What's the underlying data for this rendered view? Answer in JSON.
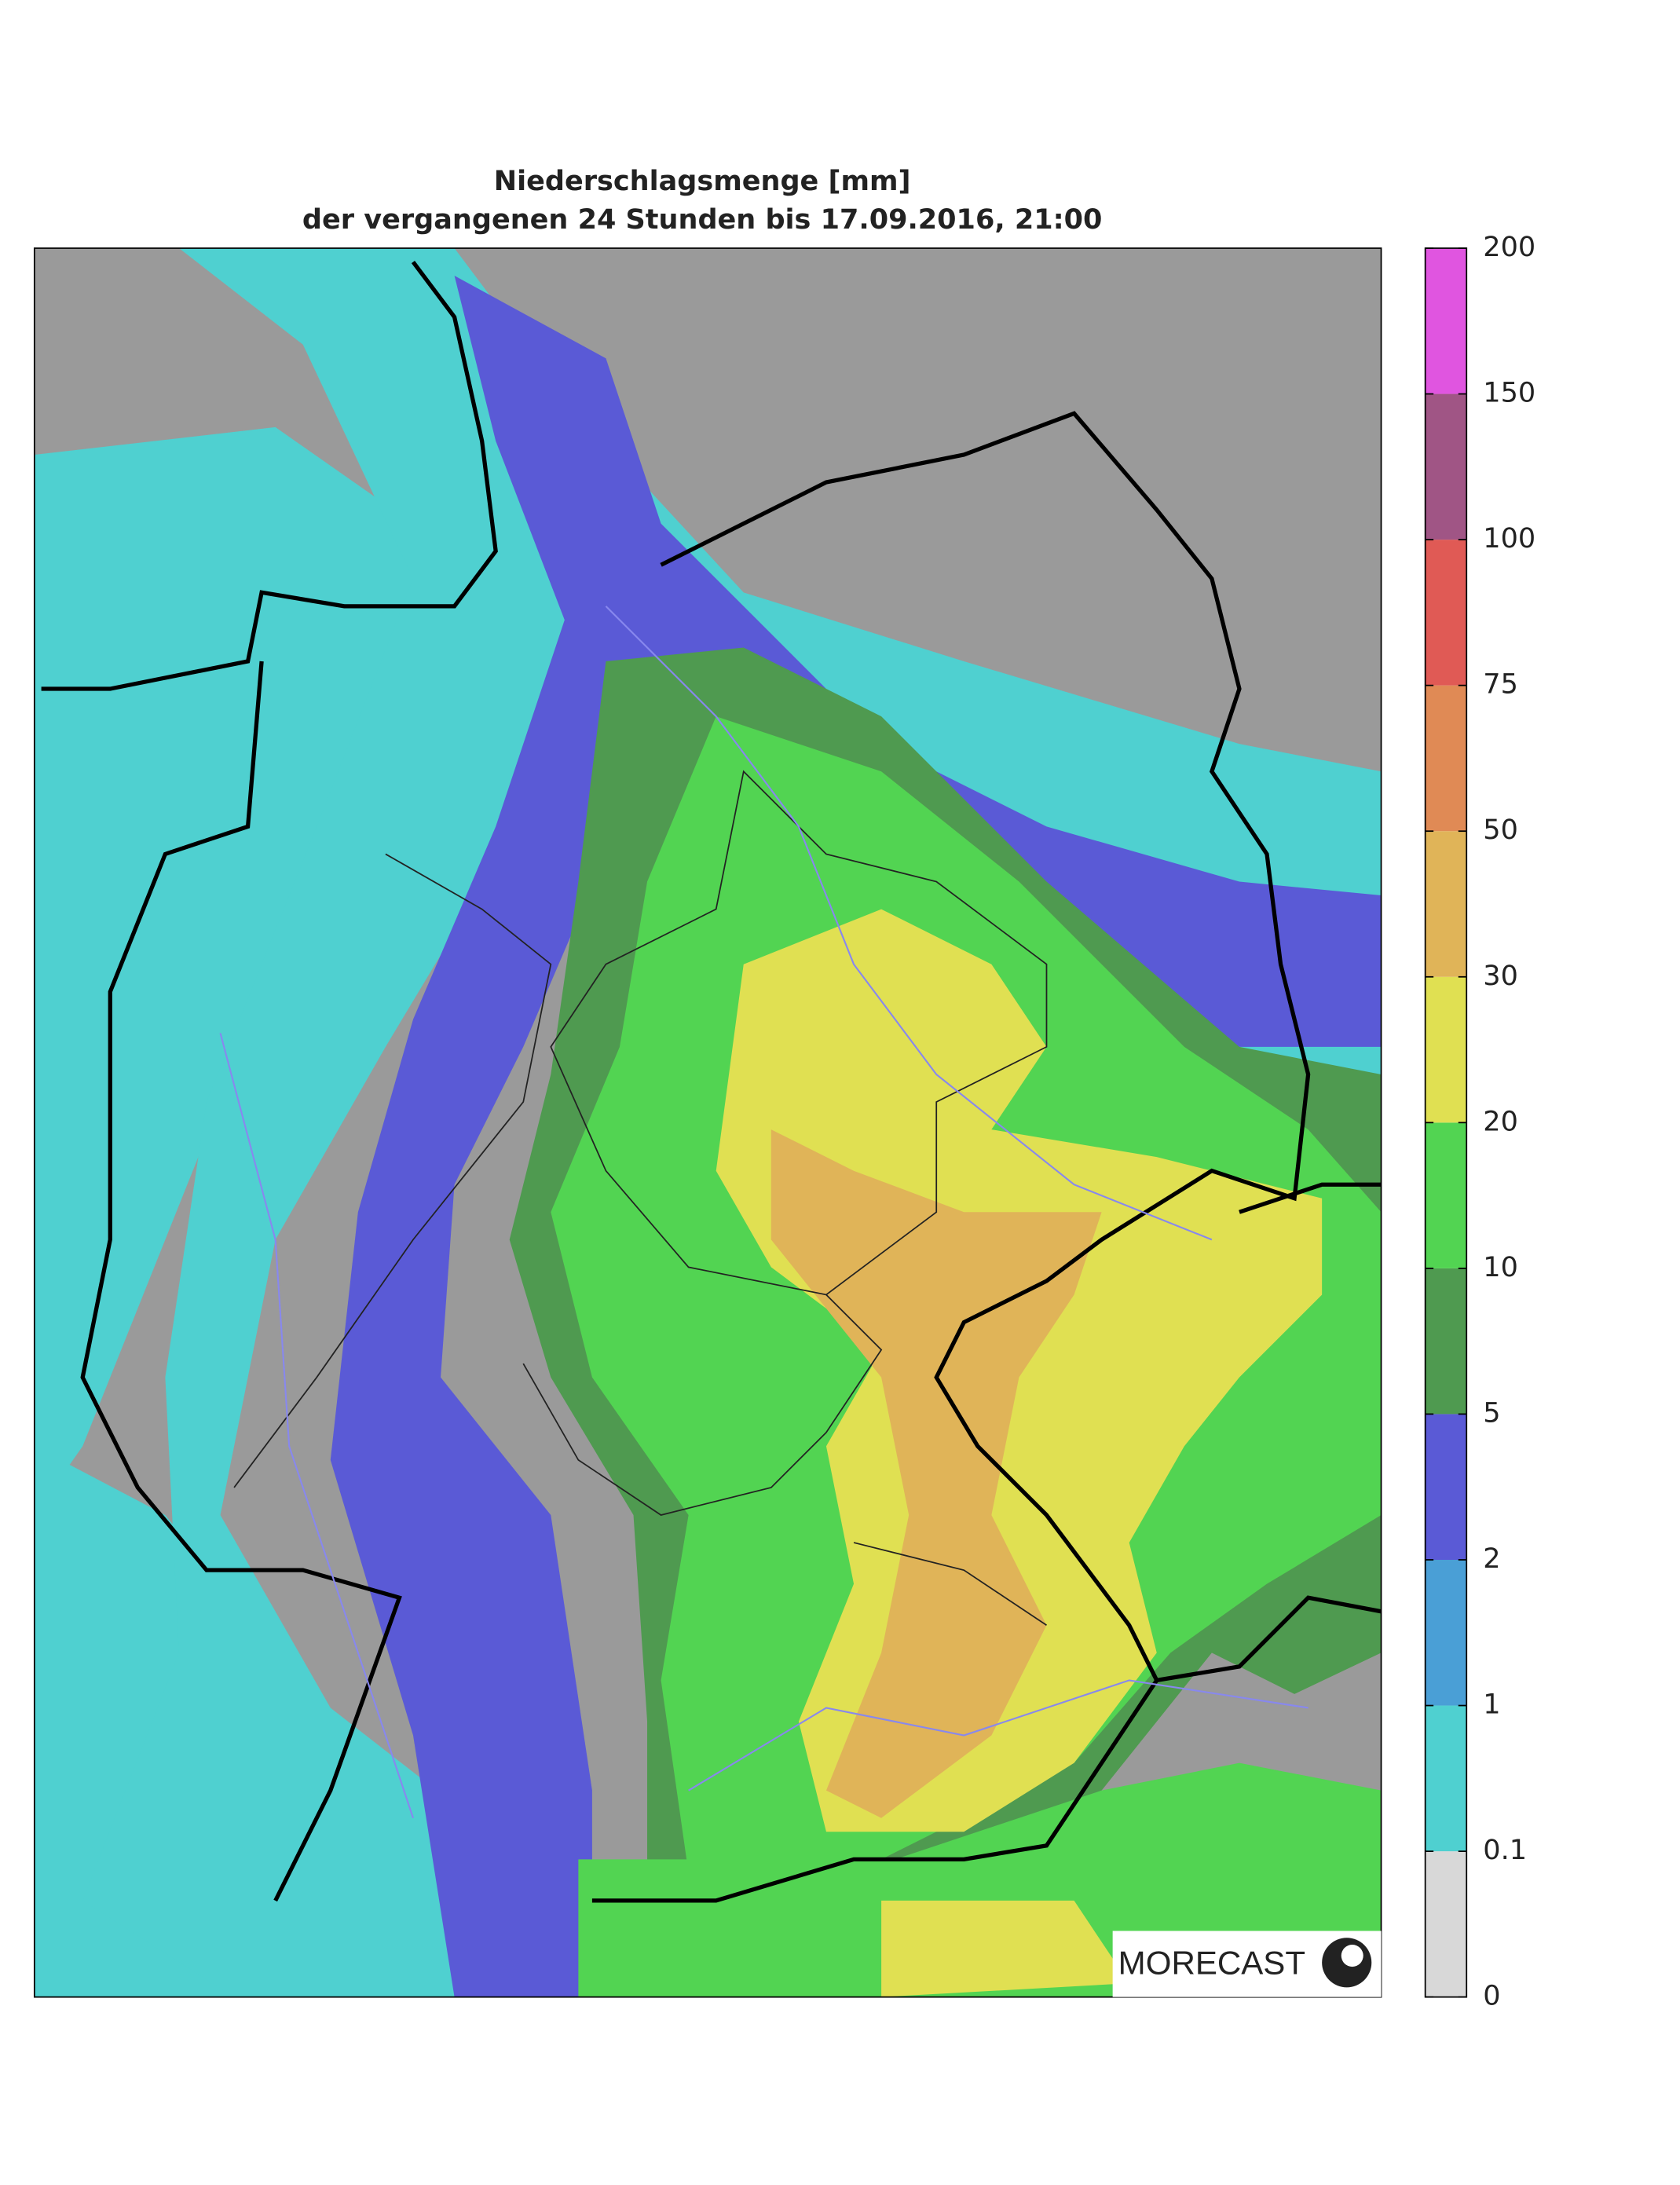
{
  "chart_data": {
    "type": "map",
    "title": "Niederschlagsmenge [mm]",
    "subtitle": "der vergangenen 24 Stunden bis 17.09.2016, 21:00",
    "colorbar": {
      "ticks": [
        0,
        0.1,
        1,
        2,
        5,
        10,
        20,
        30,
        50,
        75,
        100,
        150,
        200
      ],
      "colors": [
        "#d8d8d8",
        "#4fd0d0",
        "#4a9fd6",
        "#5a5ad6",
        "#4f9a50",
        "#52d452",
        "#e0e052",
        "#e0b458",
        "#e08a55",
        "#e05a55",
        "#a05585",
        "#e055e0"
      ]
    },
    "logo": "MORECAST"
  }
}
